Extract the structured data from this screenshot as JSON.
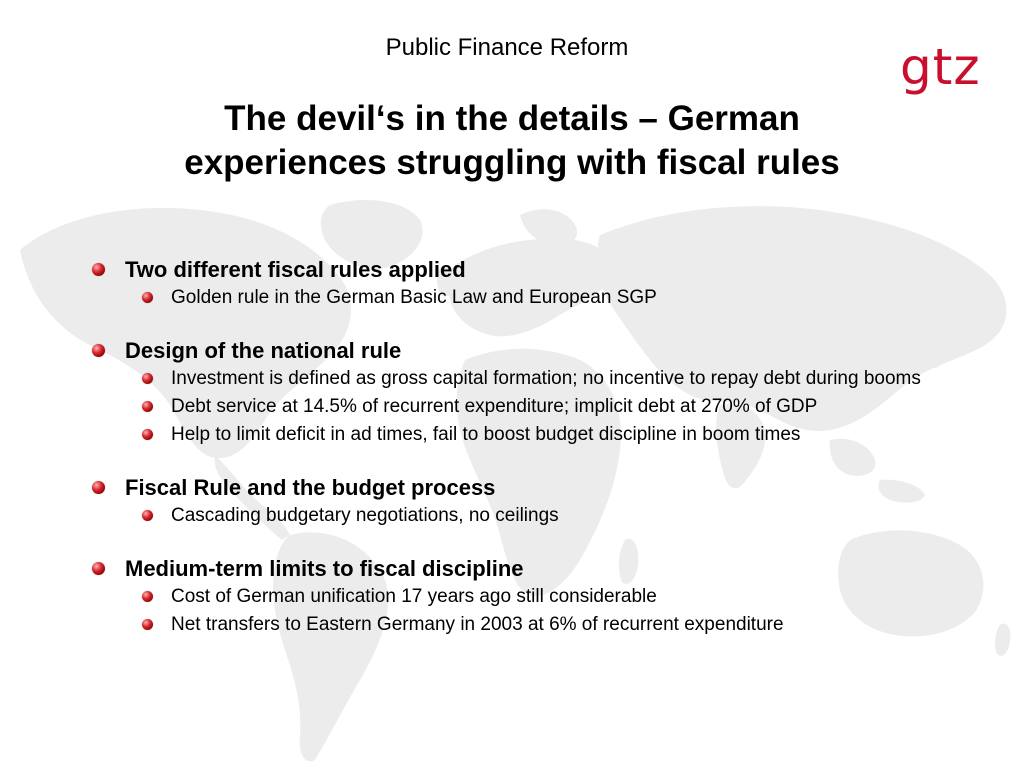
{
  "header": {
    "subtitle": "Public Finance Reform",
    "title_line1": "The devil‘s in the details – German",
    "title_line2": "experiences struggling with fiscal rules",
    "logo_text": "gtz"
  },
  "colors": {
    "brand": "#c8102e",
    "bullet": "#b01010",
    "map": "#eeeeee"
  },
  "sections": [
    {
      "heading": "Two different fiscal rules applied",
      "items": [
        "Golden rule in the German Basic Law and European SGP"
      ]
    },
    {
      "heading": "Design of the national rule",
      "items": [
        "Investment is defined as gross capital formation; no incentive to repay debt during booms",
        "Debt service at 14.5% of recurrent expenditure; implicit debt at 270% of GDP",
        "Help to limit deficit in ad times, fail to boost budget discipline in boom times"
      ]
    },
    {
      "heading": "Fiscal Rule and the budget process",
      "items": [
        "Cascading budgetary negotiations, no ceilings"
      ]
    },
    {
      "heading": "Medium-term limits to fiscal discipline",
      "items": [
        "Cost of German unification 17 years ago still considerable",
        "Net transfers to Eastern Germany in 2003 at 6% of recurrent expenditure"
      ]
    }
  ]
}
